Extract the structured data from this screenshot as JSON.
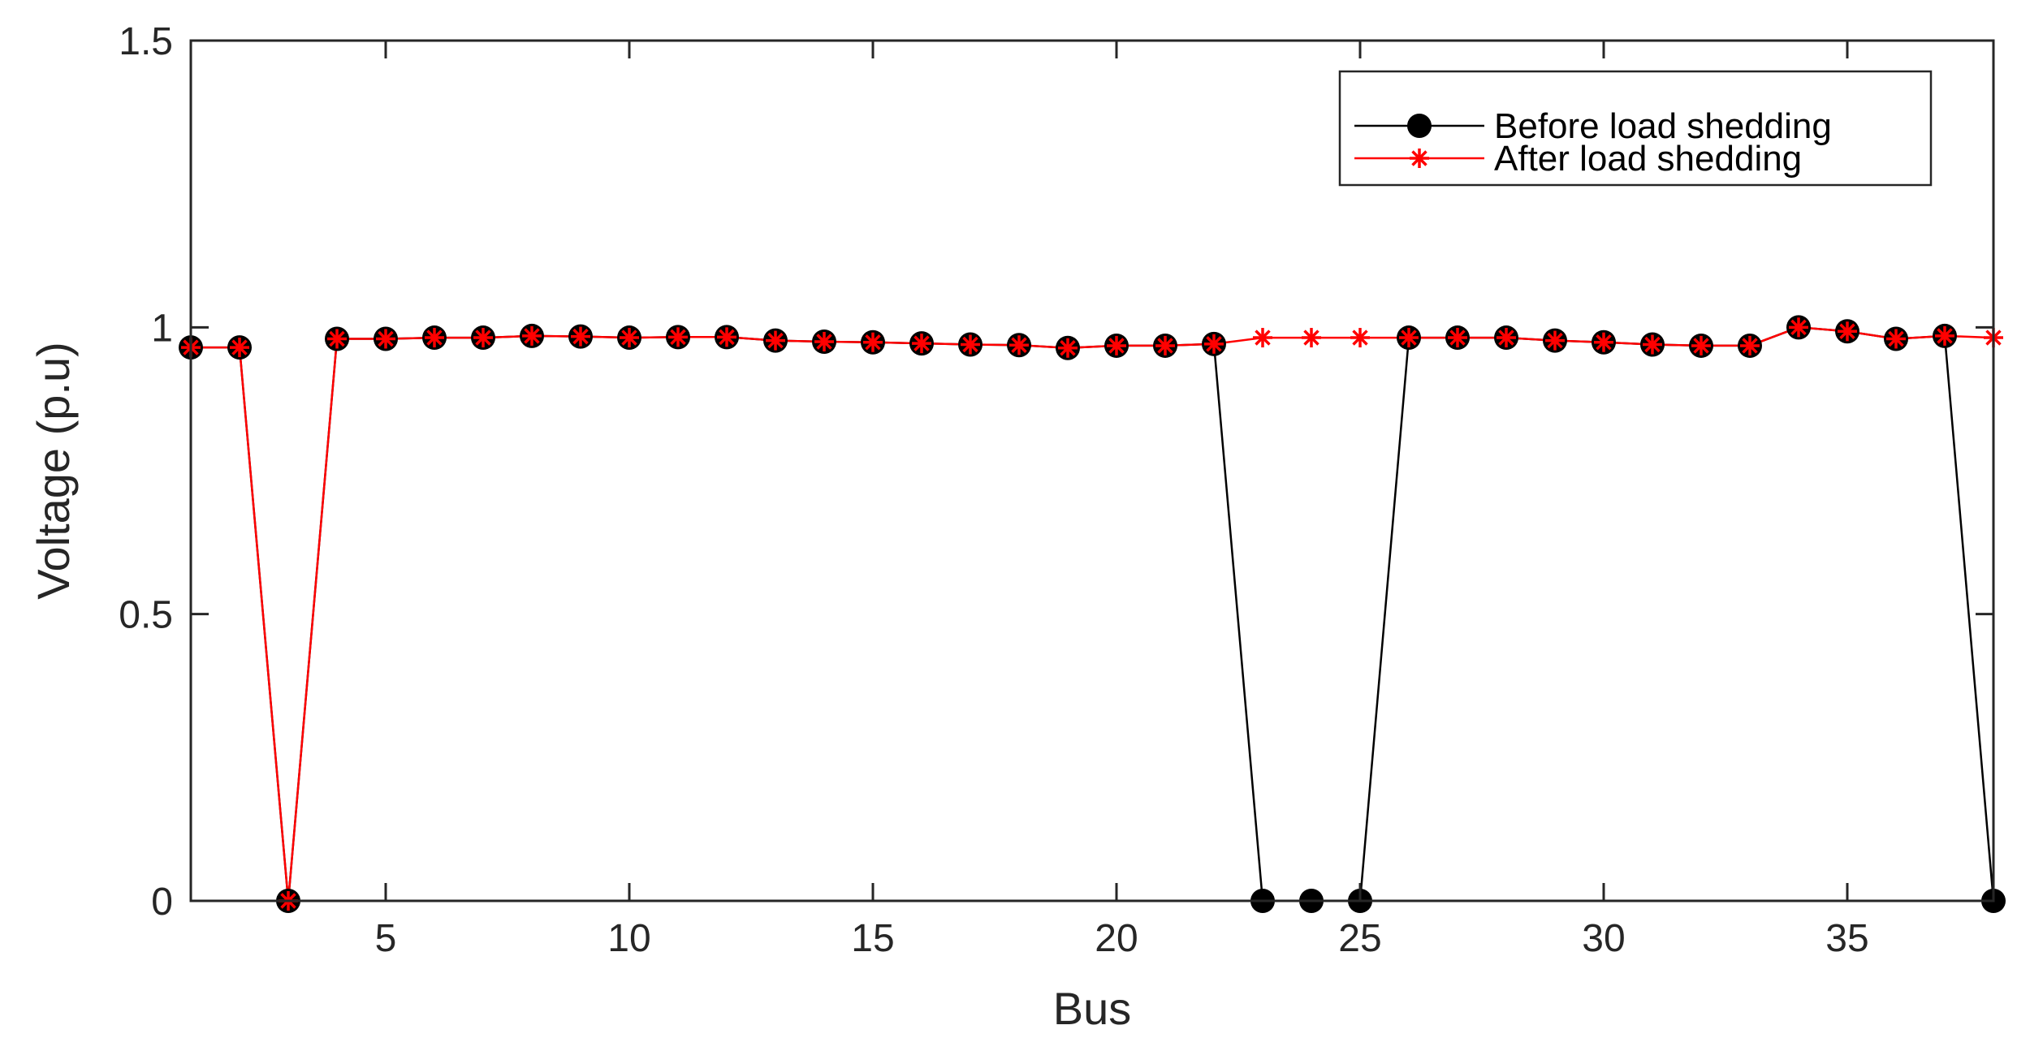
{
  "chart_data": {
    "type": "line",
    "title": "",
    "xlabel": "Bus",
    "ylabel": "Voltage (p.u)",
    "xlim": [
      1,
      38
    ],
    "ylim": [
      0,
      1.5
    ],
    "xticks": [
      5,
      10,
      15,
      20,
      25,
      30,
      35
    ],
    "yticks": [
      0,
      0.5,
      1,
      1.5
    ],
    "ytick_labels": [
      "0",
      "0.5",
      "1",
      "1.5"
    ],
    "grid": false,
    "legend_position": "top-right",
    "x": [
      1,
      2,
      3,
      4,
      5,
      6,
      7,
      8,
      9,
      10,
      11,
      12,
      13,
      14,
      15,
      16,
      17,
      18,
      19,
      20,
      21,
      22,
      23,
      24,
      25,
      26,
      27,
      28,
      29,
      30,
      31,
      32,
      33,
      34,
      35,
      36,
      37,
      38
    ],
    "series": [
      {
        "name": "Before load shedding",
        "color": "#000000",
        "marker": "filled-circle",
        "values": [
          0.965,
          0.965,
          0,
          0.98,
          0.98,
          0.982,
          0.982,
          0.985,
          0.984,
          0.982,
          0.983,
          0.983,
          0.977,
          0.975,
          0.974,
          0.972,
          0.97,
          0.969,
          0.964,
          0.968,
          0.968,
          0.971,
          0,
          0,
          0,
          0.982,
          0.982,
          0.982,
          0.977,
          0.974,
          0.97,
          0.968,
          0.968,
          1.0,
          0.993,
          0.98,
          0.985,
          0
        ]
      },
      {
        "name": "After load shedding",
        "color": "#ff0000",
        "marker": "asterisk",
        "values": [
          0.965,
          0.965,
          0,
          0.98,
          0.98,
          0.982,
          0.982,
          0.985,
          0.984,
          0.982,
          0.983,
          0.983,
          0.977,
          0.975,
          0.974,
          0.972,
          0.97,
          0.969,
          0.964,
          0.968,
          0.968,
          0.971,
          0.982,
          0.982,
          0.982,
          0.982,
          0.982,
          0.982,
          0.977,
          0.974,
          0.97,
          0.968,
          0.968,
          1.0,
          0.993,
          0.98,
          0.985,
          0.982
        ]
      }
    ]
  }
}
